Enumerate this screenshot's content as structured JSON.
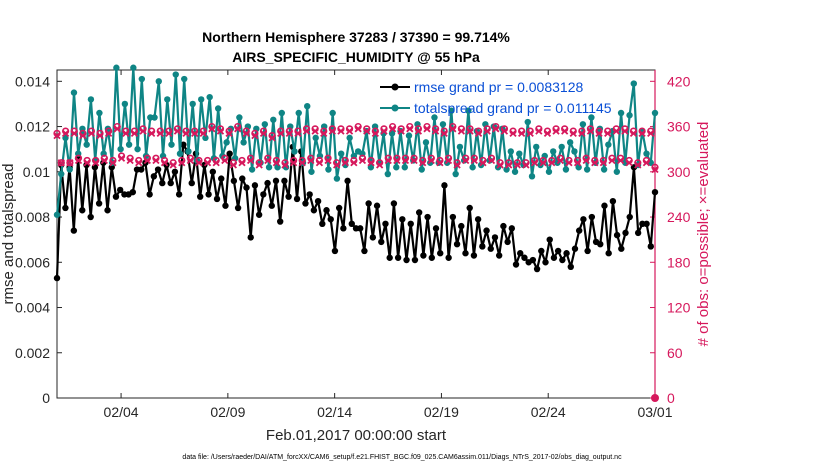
{
  "chart_data": {
    "type": "line",
    "title": [
      "Northern Hemisphere 37283 / 37390 = 99.714%",
      "AIRS_SPECIFIC_HUMIDITY @ 55 hPa"
    ],
    "xlabel": "Feb.01,2017 00:00:00 start",
    "ylabel": "rmse and totalspread",
    "y2label": "# of obs: o=possible; ×=evaluated",
    "xlim": [
      0,
      28
    ],
    "ylim": [
      0,
      0.0145
    ],
    "y2lim": [
      0,
      435
    ],
    "xtick_positions": [
      3,
      8,
      13,
      18,
      23,
      28
    ],
    "xtick_labels": [
      "02/04",
      "02/09",
      "02/14",
      "02/19",
      "02/24",
      "03/01"
    ],
    "ytick_values": [
      0,
      0.002,
      0.004,
      0.006,
      0.008,
      0.01,
      0.012,
      0.014
    ],
    "ytick_labels": [
      "0",
      "0.002",
      "0.004",
      "0.006",
      "0.008",
      "0.01",
      "0.012",
      "0.014"
    ],
    "y2tick_values": [
      0,
      60,
      120,
      180,
      240,
      300,
      360,
      420
    ],
    "y2tick_labels": [
      "0",
      "60",
      "120",
      "180",
      "240",
      "300",
      "360",
      "420"
    ],
    "legend": [
      {
        "name": "rmse grand pr = 0.0083128",
        "color": "#000000"
      },
      {
        "name": "totalspread grand pr = 0.011145",
        "color": "#0f8585"
      }
    ],
    "series": [
      {
        "name": "rmse",
        "axis": "left",
        "color": "#000000",
        "values": [
          0.0053,
          0.0103,
          0.0084,
          0.0102,
          0.0074,
          0.0106,
          0.0083,
          0.0103,
          0.008,
          0.0102,
          0.0086,
          0.0104,
          0.0083,
          0.0102,
          0.0089,
          0.0092,
          0.009,
          0.009,
          0.0091,
          0.0101,
          0.0101,
          0.0104,
          0.009,
          0.0098,
          0.0101,
          0.0095,
          0.0103,
          0.0095,
          0.01,
          0.009,
          0.0112,
          0.0109,
          0.0095,
          0.0108,
          0.0089,
          0.0103,
          0.009,
          0.01,
          0.0088,
          0.0097,
          0.0085,
          0.0108,
          0.0096,
          0.0084,
          0.0097,
          0.0093,
          0.0071,
          0.0094,
          0.0081,
          0.009,
          0.0095,
          0.0085,
          0.0096,
          0.0078,
          0.0096,
          0.0089,
          0.0111,
          0.0088,
          0.0109,
          0.0086,
          0.009,
          0.0083,
          0.0087,
          0.0077,
          0.0083,
          0.0079,
          0.0065,
          0.0084,
          0.0075,
          0.0096,
          0.0077,
          0.0075,
          0.0075,
          0.0065,
          0.0086,
          0.0071,
          0.0085,
          0.0069,
          0.0077,
          0.0062,
          0.0086,
          0.0062,
          0.0079,
          0.0061,
          0.0077,
          0.0061,
          0.0082,
          0.0063,
          0.008,
          0.0062,
          0.0075,
          0.0064,
          0.0094,
          0.0062,
          0.008,
          0.0068,
          0.0076,
          0.0064,
          0.0084,
          0.0063,
          0.0079,
          0.0067,
          0.0074,
          0.0066,
          0.0071,
          0.0063,
          0.0076,
          0.0069,
          0.0075,
          0.0059,
          0.0064,
          0.0062,
          0.006,
          0.0061,
          0.0057,
          0.0065,
          0.006,
          0.007,
          0.0062,
          0.0065,
          0.0061,
          0.0064,
          0.0058,
          0.0066,
          0.0074,
          0.0079,
          0.0065,
          0.008,
          0.0069,
          0.0068,
          0.0085,
          0.0064,
          0.0087,
          0.0072,
          0.0066,
          0.0073,
          0.008,
          0.0102,
          0.0073,
          0.0077,
          0.0077,
          0.0067,
          0.0091
        ]
      },
      {
        "name": "totalspread",
        "axis": "left",
        "color": "#0f8585",
        "values": [
          0.0081,
          0.0099,
          0.0115,
          0.0101,
          0.0135,
          0.0108,
          0.0119,
          0.0112,
          0.0132,
          0.0105,
          0.0126,
          0.0108,
          0.0119,
          0.0104,
          0.0146,
          0.011,
          0.013,
          0.0112,
          0.0146,
          0.011,
          0.0141,
          0.0107,
          0.0124,
          0.0124,
          0.014,
          0.0107,
          0.0132,
          0.0112,
          0.0143,
          0.0108,
          0.0141,
          0.0109,
          0.013,
          0.0105,
          0.0132,
          0.0115,
          0.0133,
          0.0106,
          0.0128,
          0.0107,
          0.0113,
          0.0119,
          0.0106,
          0.0124,
          0.0113,
          0.012,
          0.0101,
          0.0119,
          0.0104,
          0.0121,
          0.0102,
          0.0123,
          0.0102,
          0.0126,
          0.0102,
          0.012,
          0.0109,
          0.0126,
          0.0104,
          0.0129,
          0.01,
          0.0115,
          0.0107,
          0.012,
          0.0101,
          0.0126,
          0.0097,
          0.0108,
          0.0103,
          0.0115,
          0.0107,
          0.0109,
          0.0108,
          0.0118,
          0.0102,
          0.012,
          0.0104,
          0.0117,
          0.0099,
          0.0117,
          0.0102,
          0.0118,
          0.0102,
          0.0116,
          0.0105,
          0.0121,
          0.0101,
          0.0113,
          0.0104,
          0.0124,
          0.0104,
          0.0121,
          0.0104,
          0.0127,
          0.0099,
          0.0111,
          0.0105,
          0.0127,
          0.0102,
          0.0118,
          0.0103,
          0.0121,
          0.0105,
          0.012,
          0.0102,
          0.0119,
          0.0101,
          0.0109,
          0.01,
          0.0108,
          0.0103,
          0.0122,
          0.0098,
          0.0111,
          0.0103,
          0.0107,
          0.01,
          0.0109,
          0.0104,
          0.0111,
          0.0101,
          0.0113,
          0.0109,
          0.0102,
          0.0121,
          0.0101,
          0.0124,
          0.0104,
          0.0119,
          0.0101,
          0.0112,
          0.0118,
          0.01,
          0.0126,
          0.0104,
          0.0125,
          0.0139,
          0.0103,
          0.0118,
          0.0108,
          0.0104,
          0.0126
        ]
      },
      {
        "name": "obs possible",
        "axis": "right",
        "color": "#d6185c",
        "marker": "o",
        "values": [
          351,
          312,
          354,
          312,
          354,
          318,
          351,
          315,
          354,
          315,
          351,
          318,
          354,
          315,
          360,
          321,
          354,
          318,
          354,
          315,
          357,
          318,
          354,
          318,
          354,
          315,
          354,
          312,
          357,
          315,
          354,
          318,
          354,
          315,
          354,
          315,
          360,
          315,
          357,
          318,
          354,
          312,
          360,
          315,
          354,
          318,
          351,
          312,
          354,
          318,
          348,
          315,
          354,
          312,
          354,
          315,
          354,
          315,
          357,
          318,
          357,
          315,
          354,
          318,
          357,
          312,
          357,
          315,
          357,
          315,
          360,
          318,
          357,
          315,
          354,
          312,
          357,
          318,
          360,
          318,
          357,
          318,
          360,
          318,
          357,
          315,
          360,
          318,
          357,
          315,
          354,
          318,
          360,
          312,
          357,
          318,
          357,
          318,
          354,
          315,
          357,
          318,
          360,
          312,
          357,
          312,
          354,
          312,
          354,
          312,
          354,
          315,
          357,
          315,
          354,
          315,
          357,
          318,
          357,
          315,
          354,
          315,
          354,
          318,
          357,
          315,
          354,
          315,
          354,
          318,
          357,
          318,
          357,
          315,
          354,
          312,
          354,
          315,
          354,
          306
        ]
      },
      {
        "name": "obs evaluated",
        "axis": "right",
        "color": "#d6185c",
        "marker": "x",
        "values": [
          348,
          312,
          351,
          312,
          351,
          315,
          348,
          312,
          351,
          312,
          348,
          315,
          351,
          312,
          357,
          318,
          351,
          315,
          351,
          312,
          354,
          315,
          351,
          315,
          351,
          312,
          351,
          309,
          354,
          312,
          351,
          315,
          351,
          312,
          351,
          312,
          357,
          312,
          354,
          315,
          351,
          309,
          357,
          312,
          351,
          315,
          348,
          309,
          351,
          315,
          345,
          312,
          351,
          309,
          351,
          312,
          351,
          312,
          354,
          315,
          354,
          312,
          351,
          315,
          354,
          309,
          354,
          312,
          354,
          312,
          357,
          315,
          354,
          312,
          351,
          309,
          354,
          315,
          357,
          315,
          354,
          315,
          357,
          315,
          354,
          312,
          357,
          315,
          354,
          312,
          351,
          315,
          357,
          309,
          354,
          315,
          354,
          315,
          351,
          312,
          354,
          315,
          357,
          309,
          354,
          309,
          351,
          309,
          351,
          309,
          351,
          312,
          354,
          312,
          351,
          312,
          354,
          315,
          354,
          312,
          351,
          312,
          351,
          315,
          354,
          312,
          351,
          312,
          351,
          315,
          354,
          315,
          354,
          312,
          351,
          309,
          351,
          312,
          351,
          303
        ]
      }
    ]
  },
  "footnote": "data file: /Users/raeder/DAI/ATM_forcXX/CAM6_setup/f.e21.FHIST_BGC.f09_025.CAM6assim.011/Diags_NTrS_2017-02/obs_diag_output.nc",
  "colors": {
    "rmse": "#000000",
    "spread": "#0f8585",
    "obs": "#d6185c",
    "legend_text": "#0a4fd6"
  }
}
